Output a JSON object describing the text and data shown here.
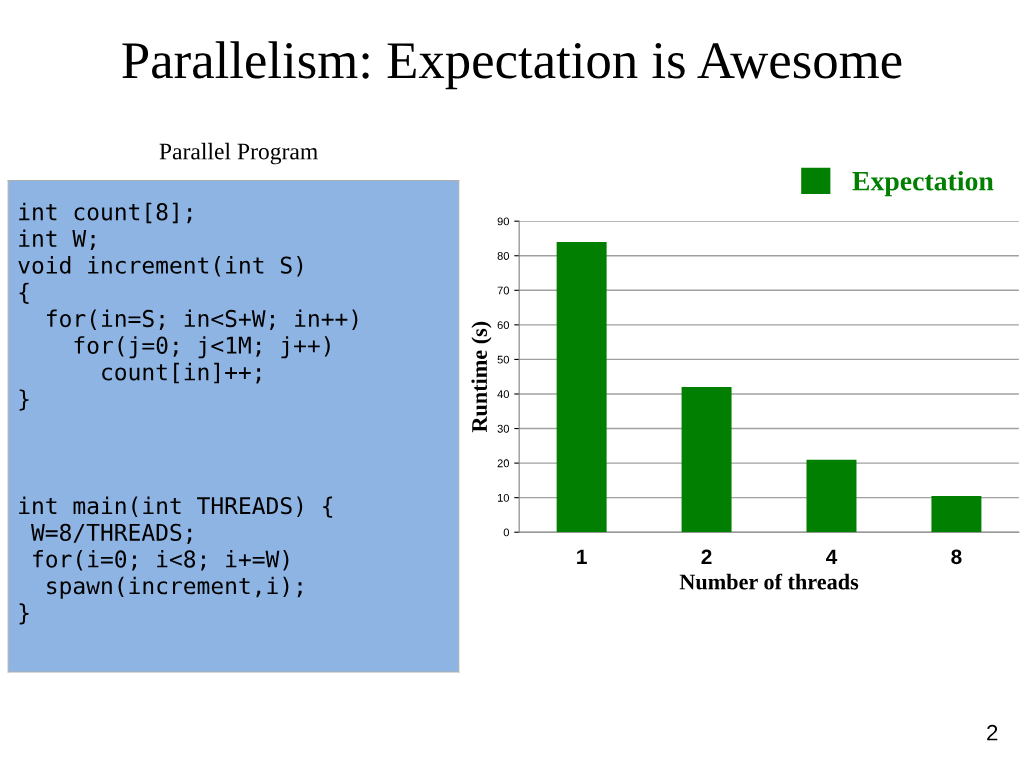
{
  "chart_data": [
    {
      "type": "other",
      "title": "Parallel Program",
      "annotations": [
        "int count[8];\nint W;\nvoid increment(int S)\n{\n  for(in=S; in<S+W; in++)\n    for(j=0; j<1M; j++)\n      count[in]++;\n}",
        "int main(int THREADS) {\n W=8/THREADS;\n for(i=0; i<8; i+=W)\n  spawn(increment,i);\n}"
      ]
    },
    {
      "type": "bar",
      "title": "Parallelism: Expectation is Awesome",
      "xlabel": "Number of threads",
      "ylabel": "Runtime (s)",
      "categories": [
        "1",
        "2",
        "4",
        "8"
      ],
      "series": [
        {
          "name": "Expectation",
          "color": "#007f00",
          "values": [
            84,
            42,
            21,
            10.5
          ]
        }
      ],
      "ylim": [
        0,
        90
      ],
      "yticks": [
        0,
        10,
        20,
        30,
        40,
        50,
        60,
        70,
        80,
        90
      ],
      "grid": "y",
      "legend": "top right",
      "annotations": [
        "2"
      ]
    }
  ]
}
